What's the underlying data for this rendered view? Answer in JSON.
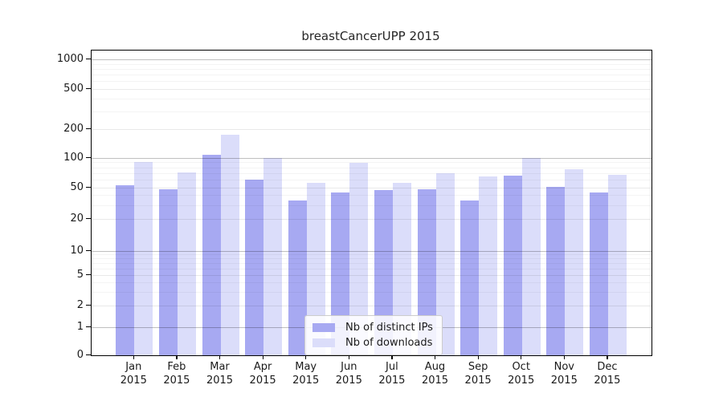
{
  "title": "breastCancerUPP 2015",
  "chart_data": {
    "type": "bar",
    "title": "breastCancerUPP 2015",
    "categories": [
      "Jan",
      "Feb",
      "Mar",
      "Apr",
      "May",
      "Jun",
      "Jul",
      "Aug",
      "Sep",
      "Oct",
      "Nov",
      "Dec"
    ],
    "category_year": "2015",
    "series": [
      {
        "name": "Nb of distinct IPs",
        "color": "#a7a9f2",
        "values": [
          53,
          48,
          109,
          61,
          35,
          44,
          47,
          48,
          35,
          66,
          51,
          44
        ]
      },
      {
        "name": "Nb of downloads",
        "color": "#dbddfa",
        "values": [
          91,
          72,
          177,
          100,
          56,
          90,
          56,
          70,
          65,
          100,
          77,
          68
        ]
      }
    ],
    "y_axis": {
      "ticks": [
        0,
        1,
        2,
        5,
        10,
        20,
        50,
        100,
        200,
        500,
        1000
      ],
      "scale": "log-like",
      "range": [
        0,
        1150
      ]
    },
    "x_axis": {
      "tick_label_format": "Month over 2015"
    },
    "legend": {
      "position": "lower-center",
      "items": [
        "Nb of distinct IPs",
        "Nb of downloads"
      ]
    },
    "grid": "on"
  }
}
